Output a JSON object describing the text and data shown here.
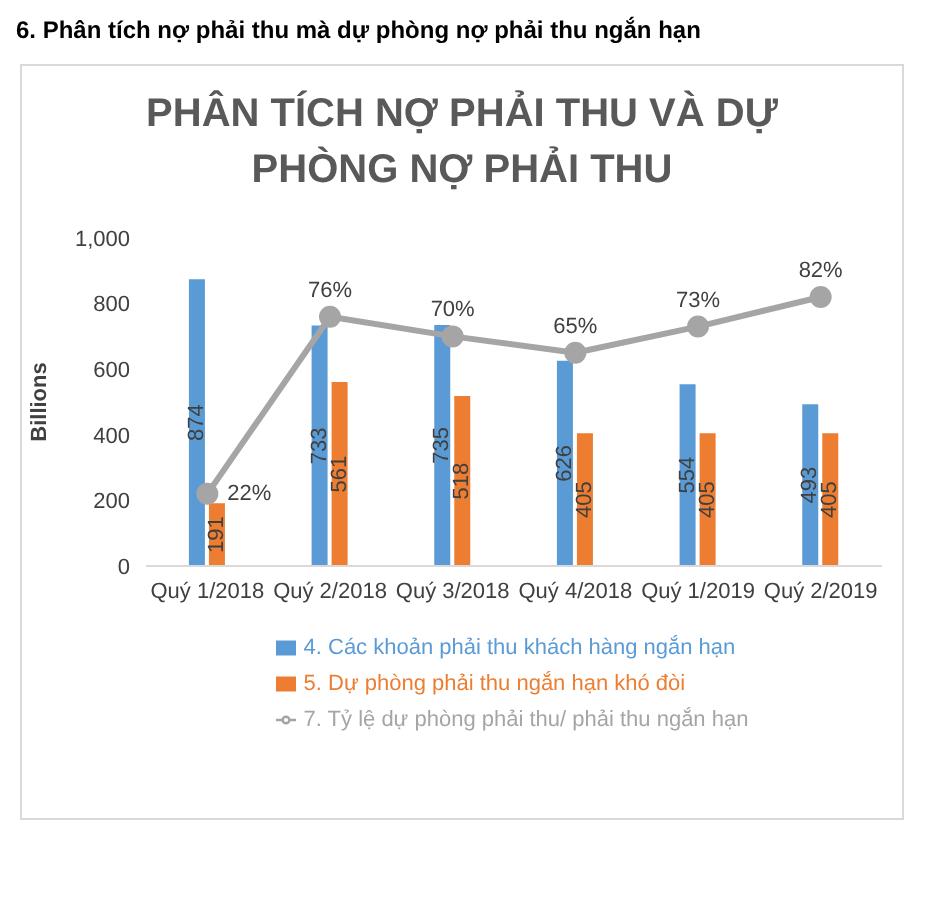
{
  "chart_data": {
    "type": "bar",
    "title": "PHÂN TÍCH NỢ PHẢI THU VÀ DỰ PHÒNG NỢ PHẢI THU",
    "annotations": [
      "6. Phân tích nợ phải thu mà dự phòng nợ phải thu ngắn hạn"
    ],
    "ylabel": "Billions",
    "categories": [
      "Quý 1/2018",
      "Quý 2/2018",
      "Quý 3/2018",
      "Quý 4/2018",
      "Quý 1/2019",
      "Quý 2/2019"
    ],
    "series": [
      {
        "name": "4. Các khoản phải thu khách hàng ngắn hạn",
        "color": "#5b9bd5",
        "values": [
          874,
          733,
          735,
          626,
          554,
          493
        ],
        "value_labels": [
          "874",
          "733",
          "735",
          "626",
          "554",
          "493"
        ]
      },
      {
        "name": "5. Dự phòng phải thu ngắn hạn khó đòi",
        "color": "#ed7d31",
        "values": [
          191,
          561,
          518,
          405,
          405,
          405
        ],
        "value_labels": [
          "191",
          "561",
          "518",
          "405",
          "405",
          "405"
        ]
      },
      {
        "name": "7. Tỷ lệ dự phòng phải thu/ phải thu ngắn hạn",
        "type": "line",
        "axis": "y2",
        "color": "#a5a5a5",
        "values": [
          22,
          76,
          70,
          65,
          73,
          82
        ],
        "value_labels": [
          "22%",
          "76%",
          "70%",
          "65%",
          "73%",
          "82%"
        ]
      }
    ],
    "ylim": [
      0,
      1000
    ],
    "yticks": [
      0,
      200,
      400,
      600,
      800,
      {
        "value": 1000,
        "label": "1,000"
      }
    ],
    "grid": false,
    "legend": "bottom",
    "marker": "circle",
    "line_style": "solid"
  }
}
